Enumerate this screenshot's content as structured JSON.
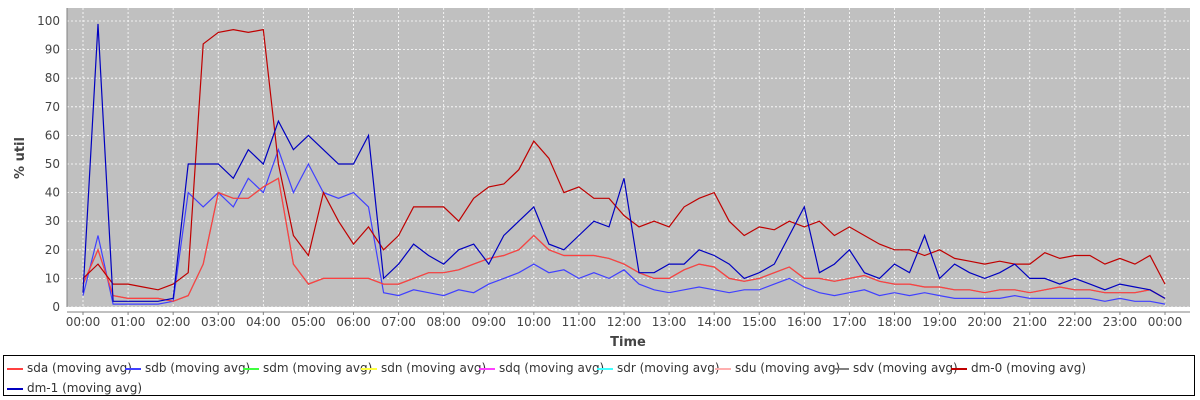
{
  "chart_data": {
    "type": "line",
    "title": "",
    "xlabel": "Time",
    "ylabel": "% util",
    "ylim": [
      0,
      100
    ],
    "yticks": [
      "0",
      "10",
      "20",
      "30",
      "40",
      "50",
      "60",
      "70",
      "80",
      "90",
      "100"
    ],
    "xticks": [
      "00:00",
      "01:00",
      "02:00",
      "03:00",
      "04:00",
      "05:00",
      "06:00",
      "07:00",
      "08:00",
      "09:00",
      "10:00",
      "11:00",
      "12:00",
      "13:00",
      "14:00",
      "15:00",
      "16:00",
      "17:00",
      "18:00",
      "19:00",
      "20:00",
      "21:00",
      "22:00",
      "23:00",
      "00:00"
    ],
    "x_step_minutes": 20,
    "grid": true,
    "legend_placement": "bottom",
    "series": [
      {
        "name": "sdm (moving avg)",
        "color": "#40ff40",
        "values": [
          8,
          20,
          4,
          3,
          3,
          3,
          2,
          4,
          15,
          40,
          38,
          38,
          42,
          45,
          15,
          8,
          10,
          10,
          10,
          10,
          8,
          8,
          10,
          12,
          12,
          13,
          15,
          17,
          18,
          20,
          25,
          20,
          18,
          18,
          18,
          17,
          15,
          12,
          10,
          10,
          13,
          15,
          14,
          10,
          9,
          10,
          12,
          14,
          10,
          10,
          9,
          10,
          11,
          9,
          8,
          8,
          7,
          7,
          6,
          6,
          5,
          6,
          6,
          5,
          6,
          7,
          6,
          6,
          5,
          5,
          5,
          6,
          3
        ]
      },
      {
        "name": "sdn (moving avg)",
        "color": "#ffff40",
        "values": [
          8,
          20,
          4,
          3,
          3,
          3,
          2,
          4,
          15,
          40,
          38,
          38,
          42,
          45,
          15,
          8,
          10,
          10,
          10,
          10,
          8,
          8,
          10,
          12,
          12,
          13,
          15,
          17,
          18,
          20,
          25,
          20,
          18,
          18,
          18,
          17,
          15,
          12,
          10,
          10,
          13,
          15,
          14,
          10,
          9,
          10,
          12,
          14,
          10,
          10,
          9,
          10,
          11,
          9,
          8,
          8,
          7,
          7,
          6,
          6,
          5,
          6,
          6,
          5,
          6,
          7,
          6,
          6,
          5,
          5,
          5,
          6,
          3
        ]
      },
      {
        "name": "sdq (moving avg)",
        "color": "#ff40ff",
        "values": [
          8,
          20,
          4,
          3,
          3,
          3,
          2,
          4,
          15,
          40,
          38,
          38,
          42,
          45,
          15,
          8,
          10,
          10,
          10,
          10,
          8,
          8,
          10,
          12,
          12,
          13,
          15,
          17,
          18,
          20,
          25,
          20,
          18,
          18,
          18,
          17,
          15,
          12,
          10,
          10,
          13,
          15,
          14,
          10,
          9,
          10,
          12,
          14,
          10,
          10,
          9,
          10,
          11,
          9,
          8,
          8,
          7,
          7,
          6,
          6,
          5,
          6,
          6,
          5,
          6,
          7,
          6,
          6,
          5,
          5,
          5,
          6,
          3
        ]
      },
      {
        "name": "sdr (moving avg)",
        "color": "#40ffff",
        "values": [
          8,
          20,
          4,
          3,
          3,
          3,
          2,
          4,
          15,
          40,
          38,
          38,
          42,
          45,
          15,
          8,
          10,
          10,
          10,
          10,
          8,
          8,
          10,
          12,
          12,
          13,
          15,
          17,
          18,
          20,
          25,
          20,
          18,
          18,
          18,
          17,
          15,
          12,
          10,
          10,
          13,
          15,
          14,
          10,
          9,
          10,
          12,
          14,
          10,
          10,
          9,
          10,
          11,
          9,
          8,
          8,
          7,
          7,
          6,
          6,
          5,
          6,
          6,
          5,
          6,
          7,
          6,
          6,
          5,
          5,
          5,
          6,
          3
        ]
      },
      {
        "name": "sdu (moving avg)",
        "color": "#ffafaf",
        "values": [
          8,
          20,
          4,
          3,
          3,
          3,
          2,
          4,
          15,
          40,
          38,
          38,
          42,
          45,
          15,
          8,
          10,
          10,
          10,
          10,
          8,
          8,
          10,
          12,
          12,
          13,
          15,
          17,
          18,
          20,
          25,
          20,
          18,
          18,
          18,
          17,
          15,
          12,
          10,
          10,
          13,
          15,
          14,
          10,
          9,
          10,
          12,
          14,
          10,
          10,
          9,
          10,
          11,
          9,
          8,
          8,
          7,
          7,
          6,
          6,
          5,
          6,
          6,
          5,
          6,
          7,
          6,
          6,
          5,
          5,
          5,
          6,
          3
        ]
      },
      {
        "name": "sdv (moving avg)",
        "color": "#808080",
        "values": [
          8,
          20,
          4,
          3,
          3,
          3,
          2,
          4,
          15,
          40,
          38,
          38,
          42,
          45,
          15,
          8,
          10,
          10,
          10,
          10,
          8,
          8,
          10,
          12,
          12,
          13,
          15,
          17,
          18,
          20,
          25,
          20,
          18,
          18,
          18,
          17,
          15,
          12,
          10,
          10,
          13,
          15,
          14,
          10,
          9,
          10,
          12,
          14,
          10,
          10,
          9,
          10,
          11,
          9,
          8,
          8,
          7,
          7,
          6,
          6,
          5,
          6,
          6,
          5,
          6,
          7,
          6,
          6,
          5,
          5,
          5,
          6,
          3
        ]
      },
      {
        "name": "sdb (moving avg)",
        "color": "#4040ff",
        "values": [
          4,
          25,
          1,
          1,
          1,
          1,
          2,
          40,
          35,
          40,
          35,
          45,
          40,
          55,
          40,
          50,
          40,
          38,
          40,
          35,
          5,
          4,
          6,
          5,
          4,
          6,
          5,
          8,
          10,
          12,
          15,
          12,
          13,
          10,
          12,
          10,
          13,
          8,
          6,
          5,
          6,
          7,
          6,
          5,
          6,
          6,
          8,
          10,
          7,
          5,
          4,
          5,
          6,
          4,
          5,
          4,
          5,
          4,
          3,
          3,
          3,
          3,
          4,
          3,
          3,
          3,
          3,
          3,
          2,
          3,
          2,
          2,
          1
        ]
      },
      {
        "name": "sda (moving avg)",
        "color": "#ff4040",
        "values": [
          8,
          20,
          4,
          3,
          3,
          3,
          2,
          4,
          15,
          40,
          38,
          38,
          42,
          45,
          15,
          8,
          10,
          10,
          10,
          10,
          8,
          8,
          10,
          12,
          12,
          13,
          15,
          17,
          18,
          20,
          25,
          20,
          18,
          18,
          18,
          17,
          15,
          12,
          10,
          10,
          13,
          15,
          14,
          10,
          9,
          10,
          12,
          14,
          10,
          10,
          9,
          10,
          11,
          9,
          8,
          8,
          7,
          7,
          6,
          6,
          5,
          6,
          6,
          5,
          6,
          7,
          6,
          6,
          5,
          5,
          5,
          6,
          3
        ]
      },
      {
        "name": "dm-0 (moving avg)",
        "color": "#c00000",
        "values": [
          10,
          15,
          8,
          8,
          7,
          6,
          8,
          12,
          92,
          96,
          97,
          96,
          97,
          50,
          25,
          18,
          40,
          30,
          22,
          28,
          20,
          25,
          35,
          35,
          35,
          30,
          38,
          42,
          43,
          48,
          58,
          52,
          40,
          42,
          38,
          38,
          32,
          28,
          30,
          28,
          35,
          38,
          40,
          30,
          25,
          28,
          27,
          30,
          28,
          30,
          25,
          28,
          25,
          22,
          20,
          20,
          18,
          20,
          17,
          16,
          15,
          16,
          15,
          15,
          19,
          17,
          18,
          18,
          15,
          17,
          15,
          18,
          8
        ]
      },
      {
        "name": "dm-1 (moving avg)",
        "color": "#0000c0",
        "values": [
          5,
          99,
          2,
          2,
          2,
          2,
          3,
          50,
          50,
          50,
          45,
          55,
          50,
          65,
          55,
          60,
          55,
          50,
          50,
          60,
          10,
          15,
          22,
          18,
          15,
          20,
          22,
          15,
          25,
          30,
          35,
          22,
          20,
          25,
          30,
          28,
          45,
          12,
          12,
          15,
          15,
          20,
          18,
          15,
          10,
          12,
          15,
          25,
          35,
          12,
          15,
          20,
          12,
          10,
          15,
          12,
          25,
          10,
          15,
          12,
          10,
          12,
          15,
          10,
          10,
          8,
          10,
          8,
          6,
          8,
          7,
          6,
          3
        ]
      }
    ]
  },
  "legend_order": [
    "sda (moving avg)",
    "sdb (moving avg)",
    "sdm (moving avg)",
    "sdn (moving avg)",
    "sdq (moving avg)",
    "sdr (moving avg)",
    "sdu (moving avg)",
    "sdv (moving avg)",
    "dm-0 (moving avg)",
    "dm-1 (moving avg)"
  ]
}
